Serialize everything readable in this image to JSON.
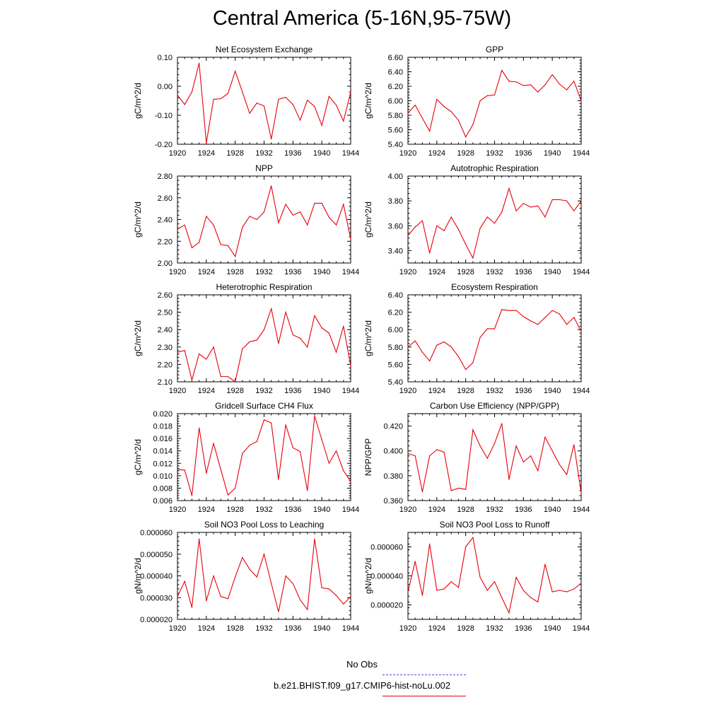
{
  "title": "Central America (5-16N,95-75W)",
  "legend": {
    "obs_label": "No Obs",
    "obs_color": "#4a4adf",
    "model_label": "b.e21.BHIST.f09_g17.CMIP6-hist-noLu.002",
    "model_color": "#e8000b"
  },
  "chart_data": [
    {
      "type": "line",
      "title": "Net Ecosystem Exchange",
      "ylabel": "gC/m^2/d",
      "xlim": [
        1920,
        1944
      ],
      "ylim": [
        -0.2,
        0.1
      ],
      "xticks": [
        "1920",
        "1924",
        "1928",
        "1932",
        "1936",
        "1940",
        "1944"
      ],
      "yticks": [
        "-0.20",
        "-0.10",
        "0.00",
        "0.10"
      ],
      "series": [
        {
          "x": [
            1920,
            1921,
            1922,
            1923,
            1924,
            1925,
            1926,
            1927,
            1928,
            1929,
            1930,
            1931,
            1932,
            1933,
            1934,
            1935,
            1936,
            1937,
            1938,
            1939,
            1940,
            1941,
            1942,
            1943,
            1944
          ],
          "values": [
            -0.03,
            -0.063,
            -0.02,
            0.08,
            -0.195,
            -0.045,
            -0.043,
            -0.025,
            0.052,
            -0.02,
            -0.093,
            -0.058,
            -0.068,
            -0.182,
            -0.045,
            -0.038,
            -0.063,
            -0.117,
            -0.048,
            -0.07,
            -0.135,
            -0.035,
            -0.065,
            -0.12,
            -0.02
          ]
        }
      ]
    },
    {
      "type": "line",
      "title": "GPP",
      "ylabel": "gC/m^2/d",
      "xlim": [
        1920,
        1944
      ],
      "ylim": [
        5.4,
        6.6
      ],
      "xticks": [
        "1920",
        "1924",
        "1928",
        "1932",
        "1936",
        "1940",
        "1944"
      ],
      "yticks": [
        "5.40",
        "5.60",
        "5.80",
        "6.00",
        "6.20",
        "6.40",
        "6.60"
      ],
      "series": [
        {
          "x": [
            1920,
            1921,
            1922,
            1923,
            1924,
            1925,
            1926,
            1927,
            1928,
            1929,
            1930,
            1931,
            1932,
            1933,
            1934,
            1935,
            1936,
            1937,
            1938,
            1939,
            1940,
            1941,
            1942,
            1943,
            1944
          ],
          "values": [
            5.83,
            5.94,
            5.76,
            5.58,
            6.02,
            5.92,
            5.85,
            5.73,
            5.5,
            5.67,
            6.0,
            6.07,
            6.08,
            6.42,
            6.27,
            6.26,
            6.21,
            6.22,
            6.12,
            6.22,
            6.36,
            6.23,
            6.15,
            6.27,
            6.0
          ]
        }
      ]
    },
    {
      "type": "line",
      "title": "NPP",
      "ylabel": "gC/m^2/d",
      "xlim": [
        1920,
        1944
      ],
      "ylim": [
        2.0,
        2.8
      ],
      "xticks": [
        "1920",
        "1924",
        "1928",
        "1932",
        "1936",
        "1940",
        "1944"
      ],
      "yticks": [
        "2.00",
        "2.20",
        "2.40",
        "2.60",
        "2.80"
      ],
      "series": [
        {
          "x": [
            1920,
            1921,
            1922,
            1923,
            1924,
            1925,
            1926,
            1927,
            1928,
            1929,
            1930,
            1931,
            1932,
            1933,
            1934,
            1935,
            1936,
            1937,
            1938,
            1939,
            1940,
            1941,
            1942,
            1943,
            1944
          ],
          "values": [
            2.31,
            2.35,
            2.14,
            2.19,
            2.43,
            2.35,
            2.17,
            2.16,
            2.06,
            2.33,
            2.43,
            2.4,
            2.47,
            2.71,
            2.37,
            2.54,
            2.44,
            2.47,
            2.35,
            2.55,
            2.55,
            2.42,
            2.35,
            2.54,
            2.22
          ]
        }
      ]
    },
    {
      "type": "line",
      "title": "Autotrophic Respiration",
      "ylabel": "gC/m^2/d",
      "xlim": [
        1920,
        1944
      ],
      "ylim": [
        3.3,
        4.0
      ],
      "xticks": [
        "1920",
        "1924",
        "1928",
        "1932",
        "1936",
        "1940",
        "1944"
      ],
      "yticks": [
        "3.40",
        "3.60",
        "3.80",
        "4.00"
      ],
      "series": [
        {
          "x": [
            1920,
            1921,
            1922,
            1923,
            1924,
            1925,
            1926,
            1927,
            1928,
            1929,
            1930,
            1931,
            1932,
            1933,
            1934,
            1935,
            1936,
            1937,
            1938,
            1939,
            1940,
            1941,
            1942,
            1943,
            1944
          ],
          "values": [
            3.52,
            3.59,
            3.64,
            3.38,
            3.6,
            3.56,
            3.67,
            3.57,
            3.45,
            3.34,
            3.58,
            3.67,
            3.62,
            3.71,
            3.9,
            3.72,
            3.78,
            3.75,
            3.76,
            3.67,
            3.81,
            3.81,
            3.8,
            3.72,
            3.8
          ]
        }
      ]
    },
    {
      "type": "line",
      "title": "Heterotrophic Respiration",
      "ylabel": "gC/m^2/d",
      "xlim": [
        1920,
        1944
      ],
      "ylim": [
        2.1,
        2.6
      ],
      "xticks": [
        "1920",
        "1924",
        "1928",
        "1932",
        "1936",
        "1940",
        "1944"
      ],
      "yticks": [
        "2.10",
        "2.20",
        "2.30",
        "2.40",
        "2.50",
        "2.60"
      ],
      "series": [
        {
          "x": [
            1920,
            1921,
            1922,
            1923,
            1924,
            1925,
            1926,
            1927,
            1928,
            1929,
            1930,
            1931,
            1932,
            1933,
            1934,
            1935,
            1936,
            1937,
            1938,
            1939,
            1940,
            1941,
            1942,
            1943,
            1944
          ],
          "values": [
            2.27,
            2.28,
            2.11,
            2.26,
            2.23,
            2.3,
            2.13,
            2.13,
            2.1,
            2.29,
            2.33,
            2.34,
            2.4,
            2.52,
            2.32,
            2.5,
            2.37,
            2.35,
            2.3,
            2.48,
            2.41,
            2.38,
            2.27,
            2.42,
            2.19
          ]
        }
      ]
    },
    {
      "type": "line",
      "title": "Ecosystem Respiration",
      "ylabel": "gC/m^2/d",
      "xlim": [
        1920,
        1944
      ],
      "ylim": [
        5.4,
        6.4
      ],
      "xticks": [
        "1920",
        "1924",
        "1928",
        "1932",
        "1936",
        "1940",
        "1944"
      ],
      "yticks": [
        "5.40",
        "5.60",
        "5.80",
        "6.00",
        "6.20",
        "6.40"
      ],
      "series": [
        {
          "x": [
            1920,
            1921,
            1922,
            1923,
            1924,
            1925,
            1926,
            1927,
            1928,
            1929,
            1930,
            1931,
            1932,
            1933,
            1934,
            1935,
            1936,
            1937,
            1938,
            1939,
            1940,
            1941,
            1942,
            1943,
            1944
          ],
          "values": [
            5.8,
            5.87,
            5.74,
            5.64,
            5.82,
            5.86,
            5.8,
            5.69,
            5.54,
            5.62,
            5.91,
            6.01,
            6.01,
            6.23,
            6.22,
            6.22,
            6.15,
            6.1,
            6.06,
            6.14,
            6.22,
            6.18,
            6.06,
            6.14,
            5.98
          ]
        }
      ]
    },
    {
      "type": "line",
      "title": "Gridcell Surface CH4 Flux",
      "ylabel": "gC/m^2/d",
      "xlim": [
        1920,
        1944
      ],
      "ylim": [
        0.006,
        0.02
      ],
      "xticks": [
        "1920",
        "1924",
        "1928",
        "1932",
        "1936",
        "1940",
        "1944"
      ],
      "yticks": [
        "0.006",
        "0.008",
        "0.010",
        "0.012",
        "0.014",
        "0.016",
        "0.018",
        "0.020"
      ],
      "series": [
        {
          "x": [
            1920,
            1921,
            1922,
            1923,
            1924,
            1925,
            1926,
            1927,
            1928,
            1929,
            1930,
            1931,
            1932,
            1933,
            1934,
            1935,
            1936,
            1937,
            1938,
            1939,
            1940,
            1941,
            1942,
            1943,
            1944
          ],
          "values": [
            0.011,
            0.0109,
            0.0068,
            0.0177,
            0.0104,
            0.0152,
            0.011,
            0.0069,
            0.008,
            0.0136,
            0.0149,
            0.0155,
            0.019,
            0.0185,
            0.0094,
            0.0182,
            0.0145,
            0.0139,
            0.0076,
            0.0196,
            0.0158,
            0.012,
            0.014,
            0.0108,
            0.0091
          ]
        }
      ]
    },
    {
      "type": "line",
      "title": "Carbon Use Efficiency (NPP/GPP)",
      "ylabel": "NPP/GPP",
      "xlim": [
        1920,
        1944
      ],
      "ylim": [
        0.36,
        0.43
      ],
      "xticks": [
        "1920",
        "1924",
        "1928",
        "1932",
        "1936",
        "1940",
        "1944"
      ],
      "yticks": [
        "0.360",
        "0.380",
        "0.400",
        "0.420"
      ],
      "series": [
        {
          "x": [
            1920,
            1921,
            1922,
            1923,
            1924,
            1925,
            1926,
            1927,
            1928,
            1929,
            1930,
            1931,
            1932,
            1933,
            1934,
            1935,
            1936,
            1937,
            1938,
            1939,
            1940,
            1941,
            1942,
            1943,
            1944
          ],
          "values": [
            0.398,
            0.396,
            0.367,
            0.396,
            0.401,
            0.399,
            0.368,
            0.37,
            0.369,
            0.417,
            0.404,
            0.394,
            0.406,
            0.422,
            0.377,
            0.404,
            0.391,
            0.396,
            0.384,
            0.411,
            0.4,
            0.389,
            0.381,
            0.405,
            0.366
          ]
        }
      ]
    },
    {
      "type": "line",
      "title": "Soil NO3 Pool Loss to Leaching",
      "ylabel": "gN/m^2/d",
      "xlim": [
        1920,
        1944
      ],
      "ylim": [
        2e-05,
        6e-05
      ],
      "xticks": [
        "1920",
        "1924",
        "1928",
        "1932",
        "1936",
        "1940",
        "1944"
      ],
      "yticks": [
        "0.000020",
        "0.000030",
        "0.000040",
        "0.000050",
        "0.000060"
      ],
      "series": [
        {
          "x": [
            1920,
            1921,
            1922,
            1923,
            1924,
            1925,
            1926,
            1927,
            1928,
            1929,
            1930,
            1931,
            1932,
            1933,
            1934,
            1935,
            1936,
            1937,
            1938,
            1939,
            1940,
            1941,
            1942,
            1943,
            1944
          ],
          "values": [
            3.05e-05,
            3.75e-05,
            2.55e-05,
            5.7e-05,
            2.85e-05,
            4e-05,
            3.05e-05,
            2.95e-05,
            3.95e-05,
            4.85e-05,
            4.3e-05,
            3.95e-05,
            5e-05,
            3.65e-05,
            2.35e-05,
            4e-05,
            3.65e-05,
            2.9e-05,
            2.45e-05,
            5.7e-05,
            3.45e-05,
            3.4e-05,
            3.1e-05,
            2.7e-05,
            3.05e-05
          ]
        }
      ]
    },
    {
      "type": "line",
      "title": "Soil NO3 Pool Loss to Runoff",
      "ylabel": "gN/m^2/d",
      "xlim": [
        1920,
        1944
      ],
      "ylim": [
        1e-05,
        7e-05
      ],
      "xticks": [
        "1920",
        "1924",
        "1928",
        "1932",
        "1936",
        "1940",
        "1944"
      ],
      "yticks": [
        "0.000020",
        "0.000040",
        "0.000060"
      ],
      "series": [
        {
          "x": [
            1920,
            1921,
            1922,
            1923,
            1924,
            1925,
            1926,
            1927,
            1928,
            1929,
            1930,
            1931,
            1932,
            1933,
            1934,
            1935,
            1936,
            1937,
            1938,
            1939,
            1940,
            1941,
            1942,
            1943,
            1944
          ],
          "values": [
            2.9e-05,
            5e-05,
            2.65e-05,
            6.2e-05,
            3e-05,
            3.1e-05,
            3.6e-05,
            3.2e-05,
            6e-05,
            6.65e-05,
            3.9e-05,
            3e-05,
            3.6e-05,
            2.5e-05,
            1.45e-05,
            3.9e-05,
            3e-05,
            2.5e-05,
            2.2e-05,
            4.8e-05,
            2.9e-05,
            3e-05,
            2.9e-05,
            3.1e-05,
            3.5e-05
          ]
        }
      ]
    }
  ]
}
